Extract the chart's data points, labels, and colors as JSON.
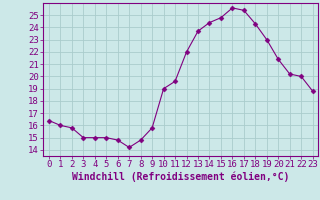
{
  "x": [
    0,
    1,
    2,
    3,
    4,
    5,
    6,
    7,
    8,
    9,
    10,
    11,
    12,
    13,
    14,
    15,
    16,
    17,
    18,
    19,
    20,
    21,
    22,
    23
  ],
  "y": [
    16.4,
    16.0,
    15.8,
    15.0,
    15.0,
    15.0,
    14.8,
    14.2,
    14.8,
    15.8,
    19.0,
    19.6,
    22.0,
    23.7,
    24.4,
    24.8,
    25.6,
    25.4,
    24.3,
    23.0,
    21.4,
    20.2,
    20.0,
    18.8
  ],
  "line_color": "#800080",
  "marker": "D",
  "marker_size": 2.5,
  "bg_color": "#cce8e8",
  "grid_color": "#aacccc",
  "xlabel": "Windchill (Refroidissement éolien,°C)",
  "yticks": [
    14,
    15,
    16,
    17,
    18,
    19,
    20,
    21,
    22,
    23,
    24,
    25
  ],
  "xlim": [
    -0.5,
    23.5
  ],
  "ylim": [
    13.5,
    26.0
  ],
  "axis_color": "#800080",
  "xlabel_fontsize": 7,
  "tick_fontsize": 6.5
}
